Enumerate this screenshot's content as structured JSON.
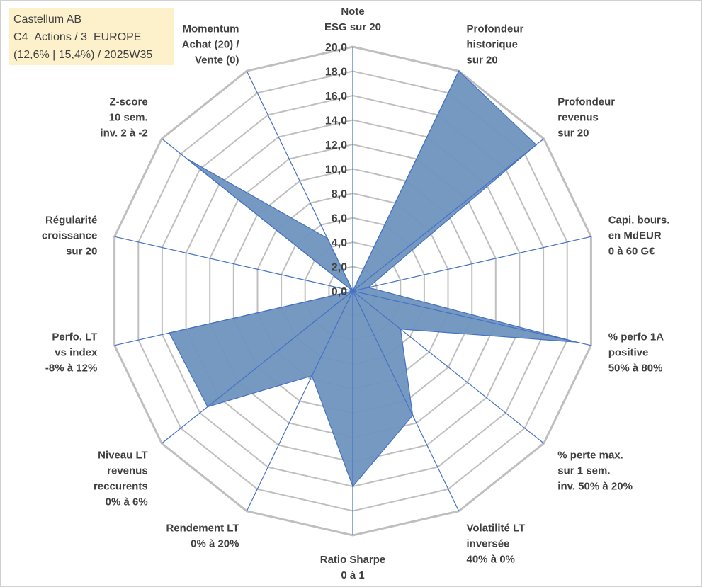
{
  "title_box": {
    "line1": "Castellum AB",
    "line2": "C4_Actions / 3_EUROPE",
    "line3": "(12,6% | 15,4%) / 2025W35"
  },
  "chart_data": {
    "type": "radar",
    "axes": [
      {
        "lines": [
          "Note",
          "ESG sur 20"
        ]
      },
      {
        "lines": [
          "Profondeur",
          "historique",
          "sur 20"
        ]
      },
      {
        "lines": [
          "Profondeur",
          "revenus",
          "sur 20"
        ]
      },
      {
        "lines": [
          "Capi. bours.",
          "en MdEUR",
          "0 à 60 G€"
        ]
      },
      {
        "lines": [
          "% perfo 1A",
          "positive",
          "50% à 80%"
        ]
      },
      {
        "lines": [
          "% perte max.",
          "sur 1 sem.",
          "inv. 50% à 20%"
        ]
      },
      {
        "lines": [
          "Volatilité LT",
          "inversée",
          "40% à 0%"
        ]
      },
      {
        "lines": [
          "Ratio Sharpe",
          "0 à 1"
        ]
      },
      {
        "lines": [
          "Rendement LT",
          "0% à 20%"
        ]
      },
      {
        "lines": [
          "Niveau LT",
          "revenus",
          "reccurents",
          "0% à 6%"
        ]
      },
      {
        "lines": [
          "Perfo. LT",
          "vs index",
          "-8% à 12%"
        ]
      },
      {
        "lines": [
          "Régularité",
          "croissance",
          "sur 20"
        ]
      },
      {
        "lines": [
          "Z-score",
          "10 sem.",
          "inv. 2 à -2"
        ]
      },
      {
        "lines": [
          "Momentum",
          "Achat (20) /",
          "Vente (0)"
        ]
      }
    ],
    "values": [
      0.0,
      20.0,
      19.2,
      1.3,
      18.8,
      5.0,
      11.3,
      16.0,
      7.7,
      15.2,
      15.4,
      0.0,
      17.4,
      4.8
    ],
    "ylim": [
      0,
      20
    ],
    "ticks": [
      "0,0",
      "2,0",
      "4,0",
      "6,0",
      "8,0",
      "10,0",
      "12,0",
      "14,0",
      "16,0",
      "18,0",
      "20,0"
    ],
    "colors": {
      "fill": "#6f93bf",
      "stroke": "#4472c4",
      "grid": "#bfbfbf",
      "spoke": "#4472c4"
    }
  }
}
